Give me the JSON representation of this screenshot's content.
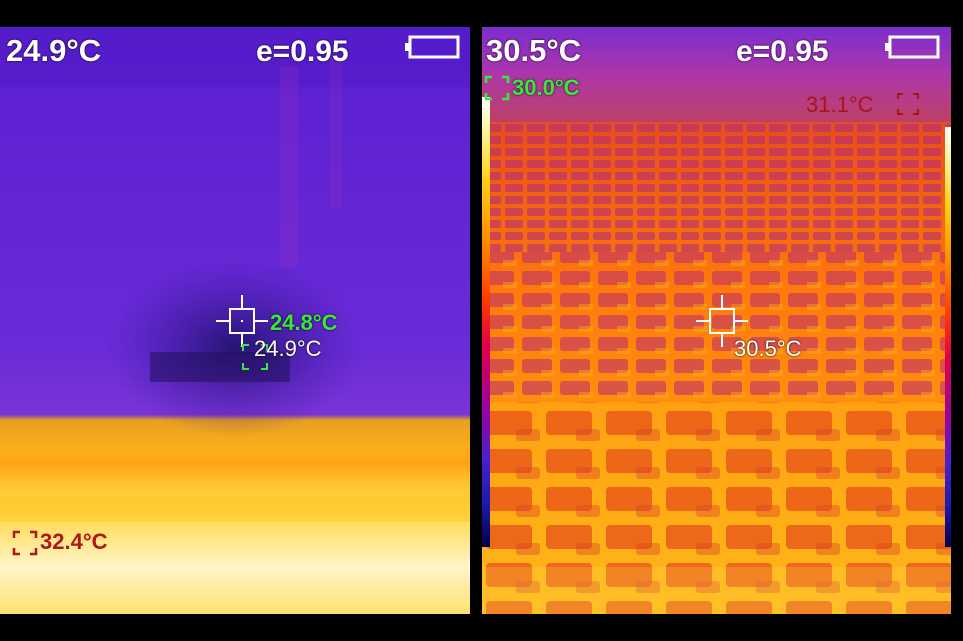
{
  "left_panel": {
    "header_temp": "24.9°C",
    "emissivity": "e=0.95",
    "center_temp": "24.9°C",
    "min_temp": "24.8°C",
    "max_temp": "32.4°C"
  },
  "right_panel": {
    "header_temp": "30.5°C",
    "emissivity": "e=0.95",
    "center_temp": "30.5°C",
    "min_temp": "30.0°C",
    "max_temp": "31.1°C"
  },
  "icons": {
    "battery": "battery-icon",
    "crosshair": "crosshair-icon",
    "box_marker": "corner-box-marker-icon"
  },
  "colors": {
    "min_marker": "#38e83a",
    "max_marker": "#b01717",
    "text": "#ffffff"
  }
}
